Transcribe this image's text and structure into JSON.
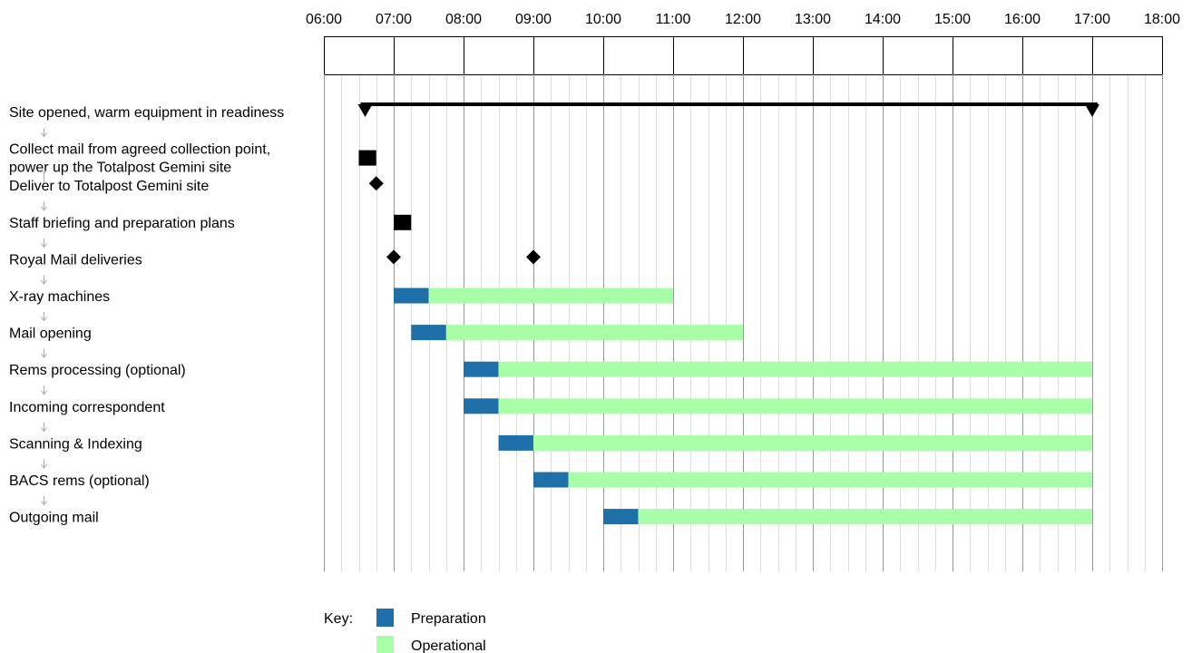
{
  "chart_data": {
    "type": "gantt",
    "x_axis": {
      "ticks": [
        "06:00",
        "07:00",
        "08:00",
        "09:00",
        "10:00",
        "11:00",
        "12:00",
        "13:00",
        "14:00",
        "15:00",
        "16:00",
        "17:00",
        "18:00"
      ],
      "range": [
        6,
        18
      ],
      "minor_step_hours": 0.25,
      "grid": true
    },
    "tasks": [
      {
        "label": "Site opened, warm equipment in readiness",
        "kind": "span",
        "start": 6.5,
        "end": 17.0
      },
      {
        "label": "Collect mail from agreed collection point,\npower up the Totalpost Gemini site",
        "kind": "block",
        "start": 6.5,
        "end": 6.75
      },
      {
        "label": "Deliver to Totalpost Gemini site",
        "kind": "milestones",
        "times": [
          6.75
        ]
      },
      {
        "label": "Staff briefing and preparation plans",
        "kind": "block",
        "start": 7.0,
        "end": 7.25
      },
      {
        "label": "Royal Mail deliveries",
        "kind": "milestones",
        "times": [
          7.0,
          9.0
        ]
      },
      {
        "label": "X-ray machines",
        "kind": "phases",
        "prep": [
          7.0,
          7.5
        ],
        "op": [
          7.5,
          11.0
        ]
      },
      {
        "label": "Mail opening",
        "kind": "phases",
        "prep": [
          7.25,
          7.75
        ],
        "op": [
          7.75,
          12.0
        ]
      },
      {
        "label": "Rems processing (optional)",
        "kind": "phases",
        "prep": [
          8.0,
          8.5
        ],
        "op": [
          8.5,
          17.0
        ]
      },
      {
        "label": "Incoming correspondent",
        "kind": "phases",
        "prep": [
          8.0,
          8.5
        ],
        "op": [
          8.5,
          17.0
        ]
      },
      {
        "label": "Scanning & Indexing",
        "kind": "phases",
        "prep": [
          8.5,
          9.0
        ],
        "op": [
          9.0,
          17.0
        ]
      },
      {
        "label": "BACS rems (optional)",
        "kind": "phases",
        "prep": [
          9.0,
          9.5
        ],
        "op": [
          9.5,
          17.0
        ]
      },
      {
        "label": "Outgoing mail",
        "kind": "phases",
        "prep": [
          10.0,
          10.5
        ],
        "op": [
          10.5,
          17.0
        ]
      }
    ],
    "legend": {
      "title": "Key:",
      "placement": "bottom-left",
      "items": [
        {
          "name": "Preparation",
          "color": "#1f6fa8"
        },
        {
          "name": "Operational",
          "color": "#a8ffa8"
        }
      ]
    },
    "colors": {
      "preparation": "#1f6fa8",
      "operational": "#a8ffa8",
      "block": "#000000",
      "milestone": "#000000",
      "arrow": "#aaaaaa",
      "major_grid": "#999999",
      "minor_grid": "#dddddd"
    }
  }
}
